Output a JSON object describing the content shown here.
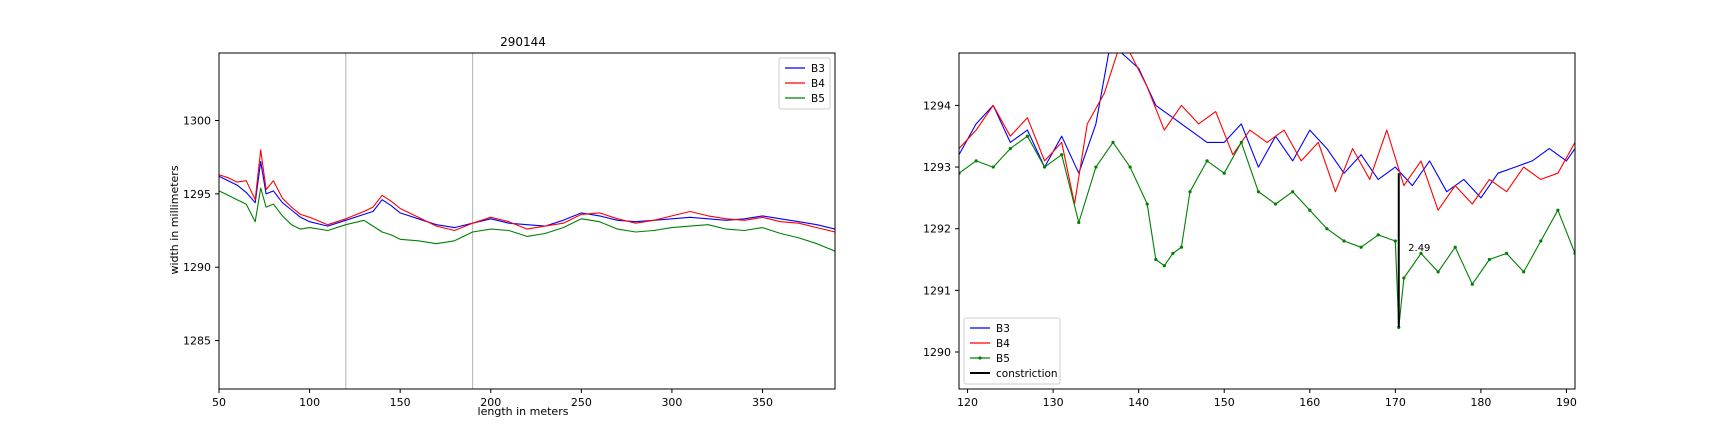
{
  "colors": {
    "B3": "#0000ff",
    "B4": "#ff0000",
    "B5": "#008000",
    "constriction": "#000000",
    "guide": "#b0b0b0"
  },
  "chart_data": [
    {
      "type": "line",
      "title": "290144",
      "xlabel": "length in meters",
      "ylabel": "width in millimeters",
      "xlim": [
        50,
        390
      ],
      "ylim": [
        1281.7,
        1304.6
      ],
      "xticks": [
        50,
        100,
        150,
        200,
        250,
        300,
        350
      ],
      "yticks": [
        1285,
        1290,
        1295,
        1300
      ],
      "vlines": [
        120,
        190
      ],
      "legend": {
        "position": "top-right",
        "entries": [
          "B3",
          "B4",
          "B5"
        ]
      },
      "grid": false,
      "series": [
        {
          "name": "B3",
          "x": [
            50,
            55,
            60,
            65,
            70,
            73,
            76,
            80,
            85,
            90,
            95,
            100,
            110,
            120,
            130,
            135,
            140,
            145,
            150,
            160,
            170,
            180,
            190,
            200,
            210,
            220,
            230,
            240,
            250,
            260,
            270,
            280,
            290,
            300,
            310,
            320,
            330,
            340,
            350,
            360,
            370,
            380,
            390
          ],
          "y": [
            1296.2,
            1295.9,
            1295.6,
            1295.1,
            1294.4,
            1297.2,
            1295.0,
            1295.2,
            1294.4,
            1293.9,
            1293.4,
            1293.1,
            1292.8,
            1293.2,
            1293.6,
            1293.8,
            1294.6,
            1294.2,
            1293.7,
            1293.3,
            1292.9,
            1292.7,
            1293.0,
            1293.3,
            1293.0,
            1292.9,
            1292.8,
            1293.2,
            1293.7,
            1293.5,
            1293.2,
            1293.1,
            1293.2,
            1293.3,
            1293.4,
            1293.3,
            1293.2,
            1293.3,
            1293.5,
            1293.3,
            1293.1,
            1292.9,
            1292.6
          ]
        },
        {
          "name": "B4",
          "x": [
            50,
            55,
            60,
            65,
            70,
            73,
            76,
            80,
            85,
            90,
            95,
            100,
            110,
            120,
            130,
            135,
            140,
            145,
            150,
            160,
            170,
            180,
            190,
            200,
            210,
            220,
            230,
            240,
            250,
            260,
            270,
            280,
            290,
            300,
            310,
            320,
            330,
            340,
            350,
            360,
            370,
            380,
            390
          ],
          "y": [
            1296.3,
            1296.1,
            1295.8,
            1295.9,
            1294.6,
            1298.0,
            1295.3,
            1295.9,
            1294.7,
            1294.1,
            1293.6,
            1293.4,
            1292.9,
            1293.3,
            1293.8,
            1294.1,
            1294.9,
            1294.5,
            1294.0,
            1293.4,
            1292.8,
            1292.5,
            1293.0,
            1293.4,
            1293.1,
            1292.6,
            1292.8,
            1293.0,
            1293.6,
            1293.7,
            1293.3,
            1293.0,
            1293.2,
            1293.5,
            1293.8,
            1293.5,
            1293.3,
            1293.2,
            1293.4,
            1293.1,
            1293.0,
            1292.7,
            1292.4
          ]
        },
        {
          "name": "B5",
          "x": [
            50,
            55,
            60,
            65,
            70,
            73,
            76,
            80,
            85,
            90,
            95,
            100,
            110,
            120,
            130,
            135,
            140,
            145,
            150,
            160,
            170,
            180,
            190,
            200,
            210,
            220,
            230,
            240,
            250,
            260,
            270,
            280,
            290,
            300,
            310,
            320,
            330,
            340,
            350,
            360,
            370,
            380,
            390
          ],
          "y": [
            1295.2,
            1294.9,
            1294.6,
            1294.3,
            1293.1,
            1295.4,
            1294.1,
            1294.3,
            1293.5,
            1292.9,
            1292.6,
            1292.7,
            1292.5,
            1292.9,
            1293.2,
            1292.8,
            1292.4,
            1292.2,
            1291.9,
            1291.8,
            1291.6,
            1291.8,
            1292.4,
            1292.6,
            1292.5,
            1292.1,
            1292.3,
            1292.7,
            1293.3,
            1293.1,
            1292.6,
            1292.4,
            1292.5,
            1292.7,
            1292.8,
            1292.9,
            1292.6,
            1292.5,
            1292.7,
            1292.3,
            1292.0,
            1291.6,
            1291.1
          ]
        }
      ]
    },
    {
      "type": "line",
      "title": "",
      "xlabel": "",
      "ylabel": "",
      "xlim": [
        119,
        191
      ],
      "ylim": [
        1289.4,
        1294.85
      ],
      "xticks": [
        120,
        130,
        140,
        150,
        160,
        170,
        180,
        190
      ],
      "yticks": [
        1290,
        1291,
        1292,
        1293,
        1294
      ],
      "legend": {
        "position": "bottom-left",
        "entries": [
          "B3",
          "B4",
          "B5",
          "constriction"
        ]
      },
      "grid": false,
      "annotation": {
        "text": "2.49",
        "x": 171.5,
        "y": 1291.7
      },
      "constriction": {
        "x": [
          170.4,
          170.4
        ],
        "y": [
          1292.9,
          1290.4
        ]
      },
      "series": [
        {
          "name": "B3",
          "x": [
            119,
            121,
            123,
            125,
            127,
            129,
            131,
            133,
            135,
            136.5,
            138,
            140,
            142,
            144,
            146,
            148,
            150,
            152,
            154,
            156,
            158,
            160,
            162,
            164,
            166,
            168,
            170,
            172,
            174,
            176,
            178,
            180,
            182,
            184,
            186,
            188,
            190,
            191
          ],
          "y": [
            1293.2,
            1293.7,
            1294.0,
            1293.4,
            1293.6,
            1293.0,
            1293.5,
            1292.9,
            1293.7,
            1294.85,
            1294.85,
            1294.6,
            1294.0,
            1293.8,
            1293.6,
            1293.4,
            1293.4,
            1293.7,
            1293.0,
            1293.5,
            1293.1,
            1293.6,
            1293.3,
            1292.9,
            1293.2,
            1292.8,
            1293.0,
            1292.7,
            1293.1,
            1292.6,
            1292.8,
            1292.5,
            1292.9,
            1293.0,
            1293.1,
            1293.3,
            1293.1,
            1293.3
          ]
        },
        {
          "name": "B4",
          "x": [
            119,
            121,
            123,
            125,
            127,
            129,
            131,
            132.5,
            134,
            136,
            137.5,
            139,
            141,
            143,
            145,
            147,
            149,
            151,
            153,
            155,
            157,
            159,
            161,
            163,
            165,
            167,
            169,
            171,
            173,
            175,
            177,
            179,
            181,
            183,
            185,
            187,
            189,
            191
          ],
          "y": [
            1293.3,
            1293.6,
            1294.0,
            1293.5,
            1293.8,
            1293.1,
            1293.4,
            1292.4,
            1293.7,
            1294.2,
            1294.85,
            1294.85,
            1294.3,
            1293.6,
            1294.0,
            1293.7,
            1293.9,
            1293.2,
            1293.6,
            1293.4,
            1293.6,
            1293.1,
            1293.4,
            1292.6,
            1293.3,
            1292.8,
            1293.6,
            1292.7,
            1293.1,
            1292.3,
            1292.7,
            1292.4,
            1292.8,
            1292.6,
            1293.0,
            1292.8,
            1292.9,
            1293.4
          ]
        },
        {
          "name": "B5",
          "x": [
            119,
            121,
            123,
            125,
            127,
            129,
            131,
            133,
            135,
            137,
            139,
            141,
            142,
            143,
            144,
            145,
            146,
            148,
            150,
            152,
            154,
            156,
            158,
            160,
            162,
            164,
            166,
            168,
            170,
            170.4,
            171,
            173,
            175,
            177,
            179,
            181,
            183,
            185,
            187,
            189,
            191
          ],
          "y": [
            1292.9,
            1293.1,
            1293.0,
            1293.3,
            1293.5,
            1293.0,
            1293.2,
            1292.1,
            1293.0,
            1293.4,
            1293.0,
            1292.4,
            1291.5,
            1291.4,
            1291.6,
            1291.7,
            1292.6,
            1293.1,
            1292.9,
            1293.4,
            1292.6,
            1292.4,
            1292.6,
            1292.3,
            1292.0,
            1291.8,
            1291.7,
            1291.9,
            1291.8,
            1290.4,
            1291.2,
            1291.6,
            1291.3,
            1291.7,
            1291.1,
            1291.5,
            1291.6,
            1291.3,
            1291.8,
            1292.3,
            1291.6
          ]
        }
      ]
    }
  ]
}
